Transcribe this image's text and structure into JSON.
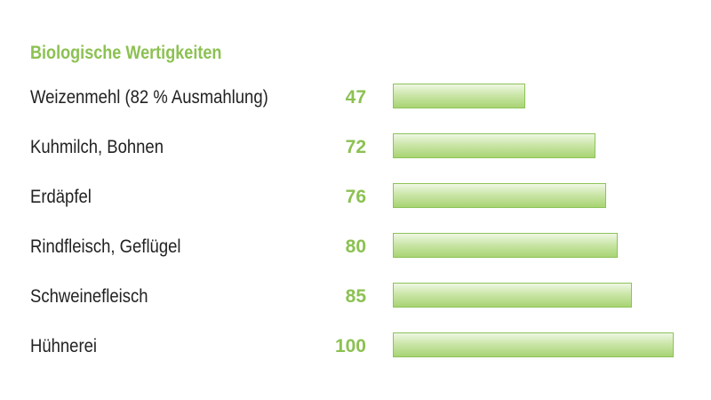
{
  "colors": {
    "accent": "#8cc152",
    "text": "#222222",
    "bar_fill": "#b3da80",
    "bar_border": "#8dc35a"
  },
  "chart_data": {
    "type": "bar",
    "orientation": "horizontal",
    "title": "Biologische Wertigkeiten",
    "categories": [
      "Weizenmehl (82 % Ausmahlung)",
      "Kuhmilch, Bohnen",
      "Erdäpfel",
      "Rindfleisch, Geflügel",
      "Schweinefleisch",
      "Hühnerei"
    ],
    "values": [
      47,
      72,
      76,
      80,
      85,
      100
    ],
    "value_labels": [
      "47",
      "72",
      "76",
      "80",
      "85",
      "100"
    ],
    "xlim": [
      0,
      100
    ],
    "grid": false,
    "legend": "none"
  }
}
